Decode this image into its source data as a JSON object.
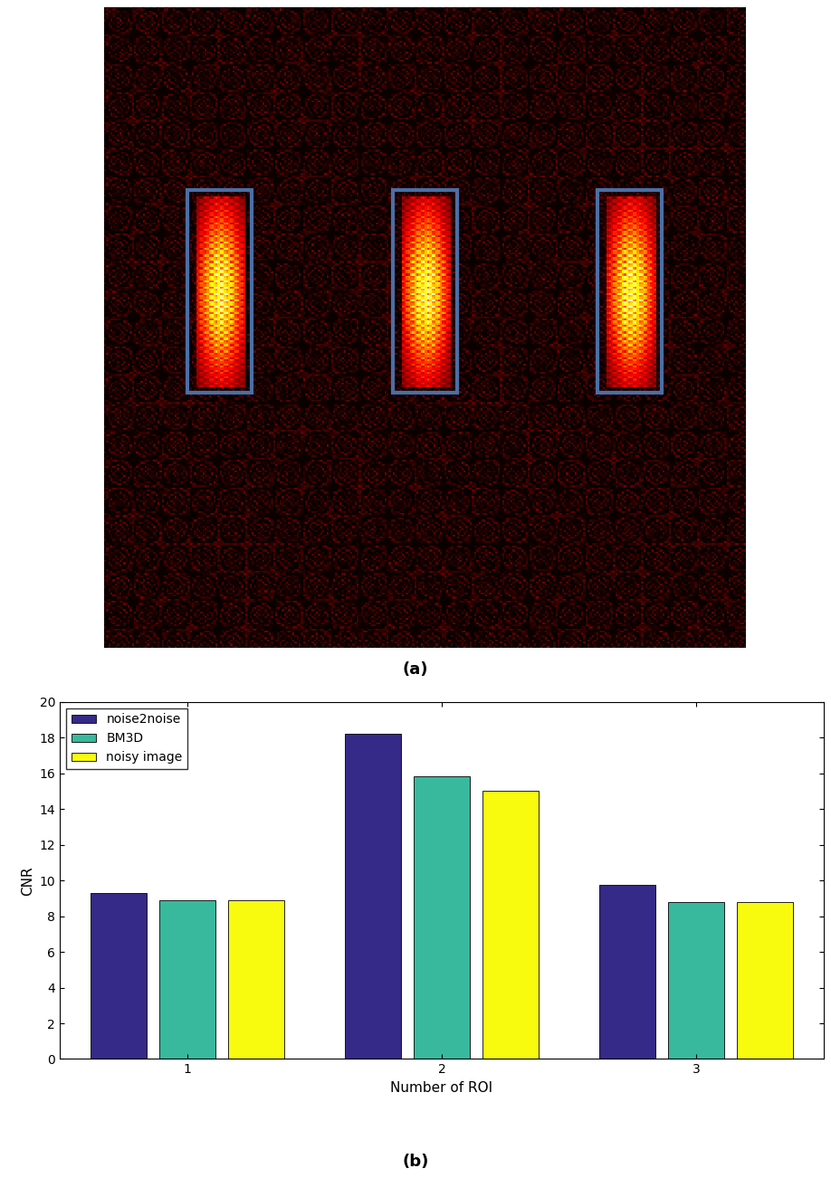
{
  "chart_data": [
    {
      "type": "image",
      "caption": "(a)",
      "roi_count": 3
    },
    {
      "type": "bar",
      "caption": "(b)",
      "x_label": "Number of ROI",
      "y_label": "CNR",
      "categories": [
        "1",
        "2",
        "3"
      ],
      "series": [
        {
          "name": "noise2noise",
          "color": "#352a87",
          "values": [
            9.3,
            18.2,
            9.75
          ]
        },
        {
          "name": "BM3D",
          "color": "#38b99e",
          "values": [
            8.9,
            15.85,
            8.8
          ]
        },
        {
          "name": "noisy image",
          "color": "#f9fb0e",
          "values": [
            8.9,
            15.05,
            8.8
          ]
        }
      ],
      "ylim": [
        0,
        20
      ],
      "yticks": [
        0,
        2,
        4,
        6,
        8,
        10,
        12,
        14,
        16,
        18,
        20
      ],
      "grid": false,
      "legend": "upper left"
    }
  ]
}
